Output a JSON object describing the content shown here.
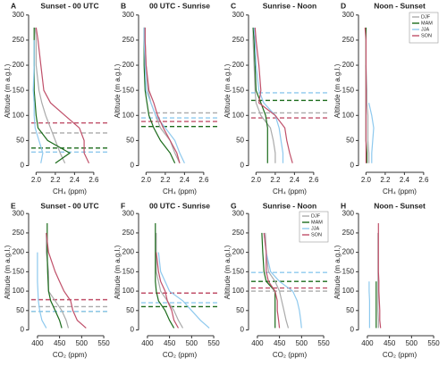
{
  "chart_data": [
    {
      "type": "line",
      "label": "A",
      "title": "Sunset - 00 UTC",
      "xlabel": "CH₄ (ppm)",
      "ylabel": "Altitude (m a.g.l.)",
      "xlim": [
        1.95,
        2.75
      ],
      "xticks": [
        {
          "value": 2.0,
          "label": "2.0"
        },
        2.2,
        2.4,
        2.6
      ],
      "ylim": [
        -8,
        305
      ],
      "yticks": [
        0,
        50,
        100,
        150,
        200,
        250,
        300
      ],
      "y": [
        5,
        25,
        50,
        75,
        100,
        125,
        150,
        200,
        250,
        275
      ],
      "series": [
        {
          "name": "DJF",
          "color": "#aaaaaa",
          "x": [
            2.3,
            2.25,
            2.2,
            2.15,
            2.1,
            2.06,
            2.03,
            2.0,
            2.0,
            1.99
          ],
          "blh": 65
        },
        {
          "name": "MAM",
          "color": "#1b6b1b",
          "x": [
            2.2,
            2.35,
            2.12,
            2.02,
            2.0,
            1.99,
            1.98,
            1.98,
            1.98,
            1.98
          ],
          "blh": 35
        },
        {
          "name": "JJA",
          "color": "#8ec9ee",
          "x": [
            2.05,
            2.07,
            2.03,
            1.99,
            1.98,
            1.98,
            1.97,
            1.98,
            1.98,
            null
          ],
          "blh": 27
        },
        {
          "name": "SON",
          "color": "#c0506a",
          "x": [
            2.55,
            2.5,
            2.5,
            2.45,
            2.3,
            2.15,
            2.08,
            2.05,
            2.02,
            2.0
          ],
          "blh": 85
        }
      ]
    },
    {
      "type": "line",
      "label": "B",
      "title": "00 UTC - Sunrise",
      "xlabel": "CH₄ (ppm)",
      "ylabel": "Altitude (m a.g.l.)",
      "xlim": [
        1.95,
        2.75
      ],
      "xticks": [
        {
          "value": 2.0,
          "label": "2.0"
        },
        2.2,
        2.4,
        2.6
      ],
      "ylim": [
        -8,
        305
      ],
      "yticks": [
        0,
        50,
        100,
        150,
        200,
        250,
        300
      ],
      "y": [
        5,
        25,
        50,
        75,
        100,
        125,
        150,
        200,
        250,
        275
      ],
      "series": [
        {
          "name": "DJF",
          "color": "#aaaaaa",
          "x": [
            2.35,
            2.3,
            2.25,
            2.15,
            2.1,
            2.05,
            2.02,
            2.0,
            1.99,
            1.99
          ],
          "blh": 105
        },
        {
          "name": "MAM",
          "color": "#1b6b1b",
          "x": [
            2.3,
            2.25,
            2.15,
            2.08,
            2.03,
            2.01,
            1.99,
            1.98,
            1.98,
            1.98
          ],
          "blh": 78
        },
        {
          "name": "JJA",
          "color": "#8ec9ee",
          "x": [
            2.4,
            2.35,
            2.3,
            2.2,
            2.1,
            2.05,
            2.0,
            1.99,
            1.98,
            1.98
          ],
          "blh": 95
        },
        {
          "name": "SON",
          "color": "#c0506a",
          "x": [
            2.35,
            2.32,
            2.25,
            2.18,
            2.12,
            2.08,
            2.03,
            2.0,
            1.99,
            1.99
          ],
          "blh": 88
        }
      ]
    },
    {
      "type": "line",
      "label": "C",
      "title": "Sunrise - Noon",
      "xlabel": "CH₄ (ppm)",
      "ylabel": "Altitude (m a.g.l.)",
      "xlim": [
        1.95,
        2.75
      ],
      "xticks": [
        {
          "value": 2.0,
          "label": "2.0"
        },
        2.2,
        2.4,
        2.6
      ],
      "ylim": [
        -8,
        305
      ],
      "yticks": [
        0,
        50,
        100,
        150,
        200,
        250,
        300
      ],
      "y": [
        5,
        25,
        50,
        75,
        100,
        125,
        150,
        200,
        250,
        275
      ],
      "series": [
        {
          "name": "DJF",
          "color": "#aaaaaa",
          "x": [
            2.2,
            2.2,
            2.18,
            2.15,
            2.05,
            2.0,
            1.99,
            1.98,
            1.97,
            1.97
          ],
          "blh": 105
        },
        {
          "name": "MAM",
          "color": "#1b6b1b",
          "x": [
            2.12,
            2.12,
            2.12,
            2.12,
            2.1,
            2.05,
            2.0,
            1.99,
            1.98,
            1.97
          ],
          "blh": 130
        },
        {
          "name": "JJA",
          "color": "#8ec9ee",
          "x": [
            2.28,
            2.28,
            2.26,
            2.24,
            2.2,
            2.08,
            2.03,
            2.0,
            1.99,
            1.98
          ],
          "blh": 145
        },
        {
          "name": "SON",
          "color": "#c0506a",
          "x": [
            2.38,
            2.35,
            2.32,
            2.3,
            2.2,
            2.03,
            2.05,
            2.03,
            2.0,
            1.99
          ],
          "blh": 95
        }
      ]
    },
    {
      "type": "line",
      "label": "D",
      "title": "Noon - Sunset",
      "xlabel": "CH₄ (ppm)",
      "ylabel": "Altitude (m a.g.l.)",
      "xlim": [
        1.95,
        2.75
      ],
      "xticks": [
        {
          "value": 2.0,
          "label": "2.0"
        },
        2.2,
        2.4,
        2.6
      ],
      "ylim": [
        -8,
        305
      ],
      "yticks": [
        0,
        50,
        100,
        150,
        200,
        250,
        300
      ],
      "legend": "top-right",
      "y": [
        5,
        25,
        50,
        75,
        100,
        125,
        150,
        200,
        250,
        275
      ],
      "series": [
        {
          "name": "DJF",
          "color": "#aaaaaa",
          "x": [
            2.03,
            2.03,
            2.02,
            2.02,
            2.02,
            2.01,
            2.01,
            2.0,
            null,
            null
          ]
        },
        {
          "name": "MAM",
          "color": "#1b6b1b",
          "x": [
            2.01,
            2.01,
            2.0,
            2.0,
            2.0,
            2.0,
            2.0,
            2.0,
            2.0,
            2.0
          ]
        },
        {
          "name": "JJA",
          "color": "#8ec9ee",
          "x": [
            2.06,
            2.06,
            2.07,
            2.08,
            2.06,
            2.03,
            null,
            null,
            null,
            null
          ]
        },
        {
          "name": "SON",
          "color": "#c0506a",
          "x": [
            2.0,
            2.0,
            2.0,
            2.0,
            2.0,
            2.0,
            2.0,
            2.0,
            2.0,
            1.99
          ]
        }
      ]
    },
    {
      "type": "line",
      "label": "E",
      "title": "Sunset - 00 UTC",
      "xlabel": "CO₂ (ppm)",
      "ylabel": "Altitude (m a.g.l.)",
      "xlim": [
        386,
        560
      ],
      "xticks": [
        400,
        450,
        500,
        550
      ],
      "ylim": [
        -8,
        305
      ],
      "yticks": [
        0,
        50,
        100,
        150,
        200,
        250,
        300
      ],
      "y": [
        5,
        25,
        50,
        75,
        100,
        125,
        150,
        200,
        250,
        275
      ],
      "series": [
        {
          "name": "DJF",
          "color": "#aaaaaa",
          "x": [
            470,
            465,
            455,
            440,
            425,
            425,
            425,
            420,
            420,
            null
          ],
          "blh": 60
        },
        {
          "name": "MAM",
          "color": "#1b6b1b",
          "x": [
            455,
            450,
            440,
            430,
            425,
            424,
            423,
            422,
            422,
            422
          ],
          "blh": 48
        },
        {
          "name": "JJA",
          "color": "#8ec9ee",
          "x": [
            420,
            410,
            405,
            402,
            401,
            400,
            400,
            400,
            null,
            null
          ],
          "blh": 48
        },
        {
          "name": "SON",
          "color": "#c0506a",
          "x": [
            510,
            490,
            480,
            475,
            460,
            450,
            440,
            425,
            420,
            null
          ],
          "blh": 78
        }
      ]
    },
    {
      "type": "line",
      "label": "F",
      "title": "00 UTC - Sunrise",
      "xlabel": "CO₂ (ppm)",
      "ylabel": "Altitude (m a.g.l.)",
      "xlim": [
        386,
        560
      ],
      "xticks": [
        400,
        450,
        500,
        550
      ],
      "ylim": [
        -8,
        305
      ],
      "yticks": [
        0,
        50,
        100,
        150,
        200,
        250,
        300
      ],
      "y": [
        5,
        25,
        50,
        75,
        100,
        125,
        150,
        200,
        250,
        275
      ],
      "series": [
        {
          "name": "DJF",
          "color": "#aaaaaa",
          "x": [
            480,
            470,
            460,
            445,
            430,
            425,
            420,
            420,
            420,
            null
          ],
          "blh": 95
        },
        {
          "name": "MAM",
          "color": "#1b6b1b",
          "x": [
            460,
            450,
            440,
            425,
            420,
            418,
            418,
            418,
            418,
            418
          ],
          "blh": 60
        },
        {
          "name": "JJA",
          "color": "#8ec9ee",
          "x": [
            540,
            520,
            500,
            480,
            450,
            440,
            430,
            425,
            null,
            null
          ],
          "blh": 70
        },
        {
          "name": "SON",
          "color": "#c0506a",
          "x": [
            470,
            460,
            455,
            445,
            440,
            430,
            425,
            420,
            null,
            null
          ],
          "blh": 95
        }
      ]
    },
    {
      "type": "line",
      "label": "G",
      "title": "Sunrise - Noon",
      "xlabel": "CO₂ (ppm)",
      "ylabel": "Altitude (m a.g.l.)",
      "xlim": [
        386,
        560
      ],
      "xticks": [
        400,
        450,
        500,
        550
      ],
      "ylim": [
        -8,
        305
      ],
      "yticks": [
        0,
        50,
        100,
        150,
        200,
        250,
        300
      ],
      "legend": "top-right",
      "y": [
        5,
        25,
        50,
        75,
        100,
        125,
        150,
        200,
        250,
        275
      ],
      "series": [
        {
          "name": "DJF",
          "color": "#aaaaaa",
          "x": [
            470,
            465,
            460,
            455,
            450,
            440,
            425,
            420,
            418,
            null
          ],
          "blh": 100
        },
        {
          "name": "MAM",
          "color": "#1b6b1b",
          "x": [
            440,
            440,
            440,
            440,
            440,
            420,
            415,
            412,
            410,
            null
          ],
          "blh": 125
        },
        {
          "name": "JJA",
          "color": "#8ec9ee",
          "x": [
            500,
            498,
            495,
            490,
            480,
            450,
            430,
            420,
            415,
            null
          ],
          "blh": 148
        },
        {
          "name": "SON",
          "color": "#c0506a",
          "x": [
            450,
            448,
            445,
            445,
            440,
            425,
            420,
            420,
            415,
            null
          ],
          "blh": 108
        }
      ]
    },
    {
      "type": "line",
      "label": "H",
      "title": "Noon - Sunset",
      "xlabel": "CO₂ (ppm)",
      "ylabel": "Altitude (m a.g.l.)",
      "xlim": [
        386,
        560
      ],
      "xticks": [
        400,
        450,
        500,
        550
      ],
      "ylim": [
        -8,
        305
      ],
      "yticks": [
        0,
        50,
        100,
        150,
        200,
        250,
        300
      ],
      "y": [
        5,
        25,
        50,
        75,
        100,
        125,
        150,
        200,
        250,
        275
      ],
      "series": [
        {
          "name": "DJF",
          "color": "#aaaaaa",
          "x": [
            425,
            425,
            424,
            424,
            424,
            424,
            424,
            424,
            424,
            null
          ]
        },
        {
          "name": "MAM",
          "color": "#1b6b1b",
          "x": [
            420,
            420,
            420,
            420,
            420,
            420,
            null,
            null,
            null,
            null
          ]
        },
        {
          "name": "JJA",
          "color": "#8ec9ee",
          "x": [
            405,
            405,
            405,
            405,
            404,
            404,
            null,
            null,
            null,
            null
          ]
        },
        {
          "name": "SON",
          "color": "#c0506a",
          "x": [
            430,
            428,
            428,
            427,
            426,
            426,
            425,
            425,
            425,
            425
          ]
        }
      ]
    }
  ]
}
